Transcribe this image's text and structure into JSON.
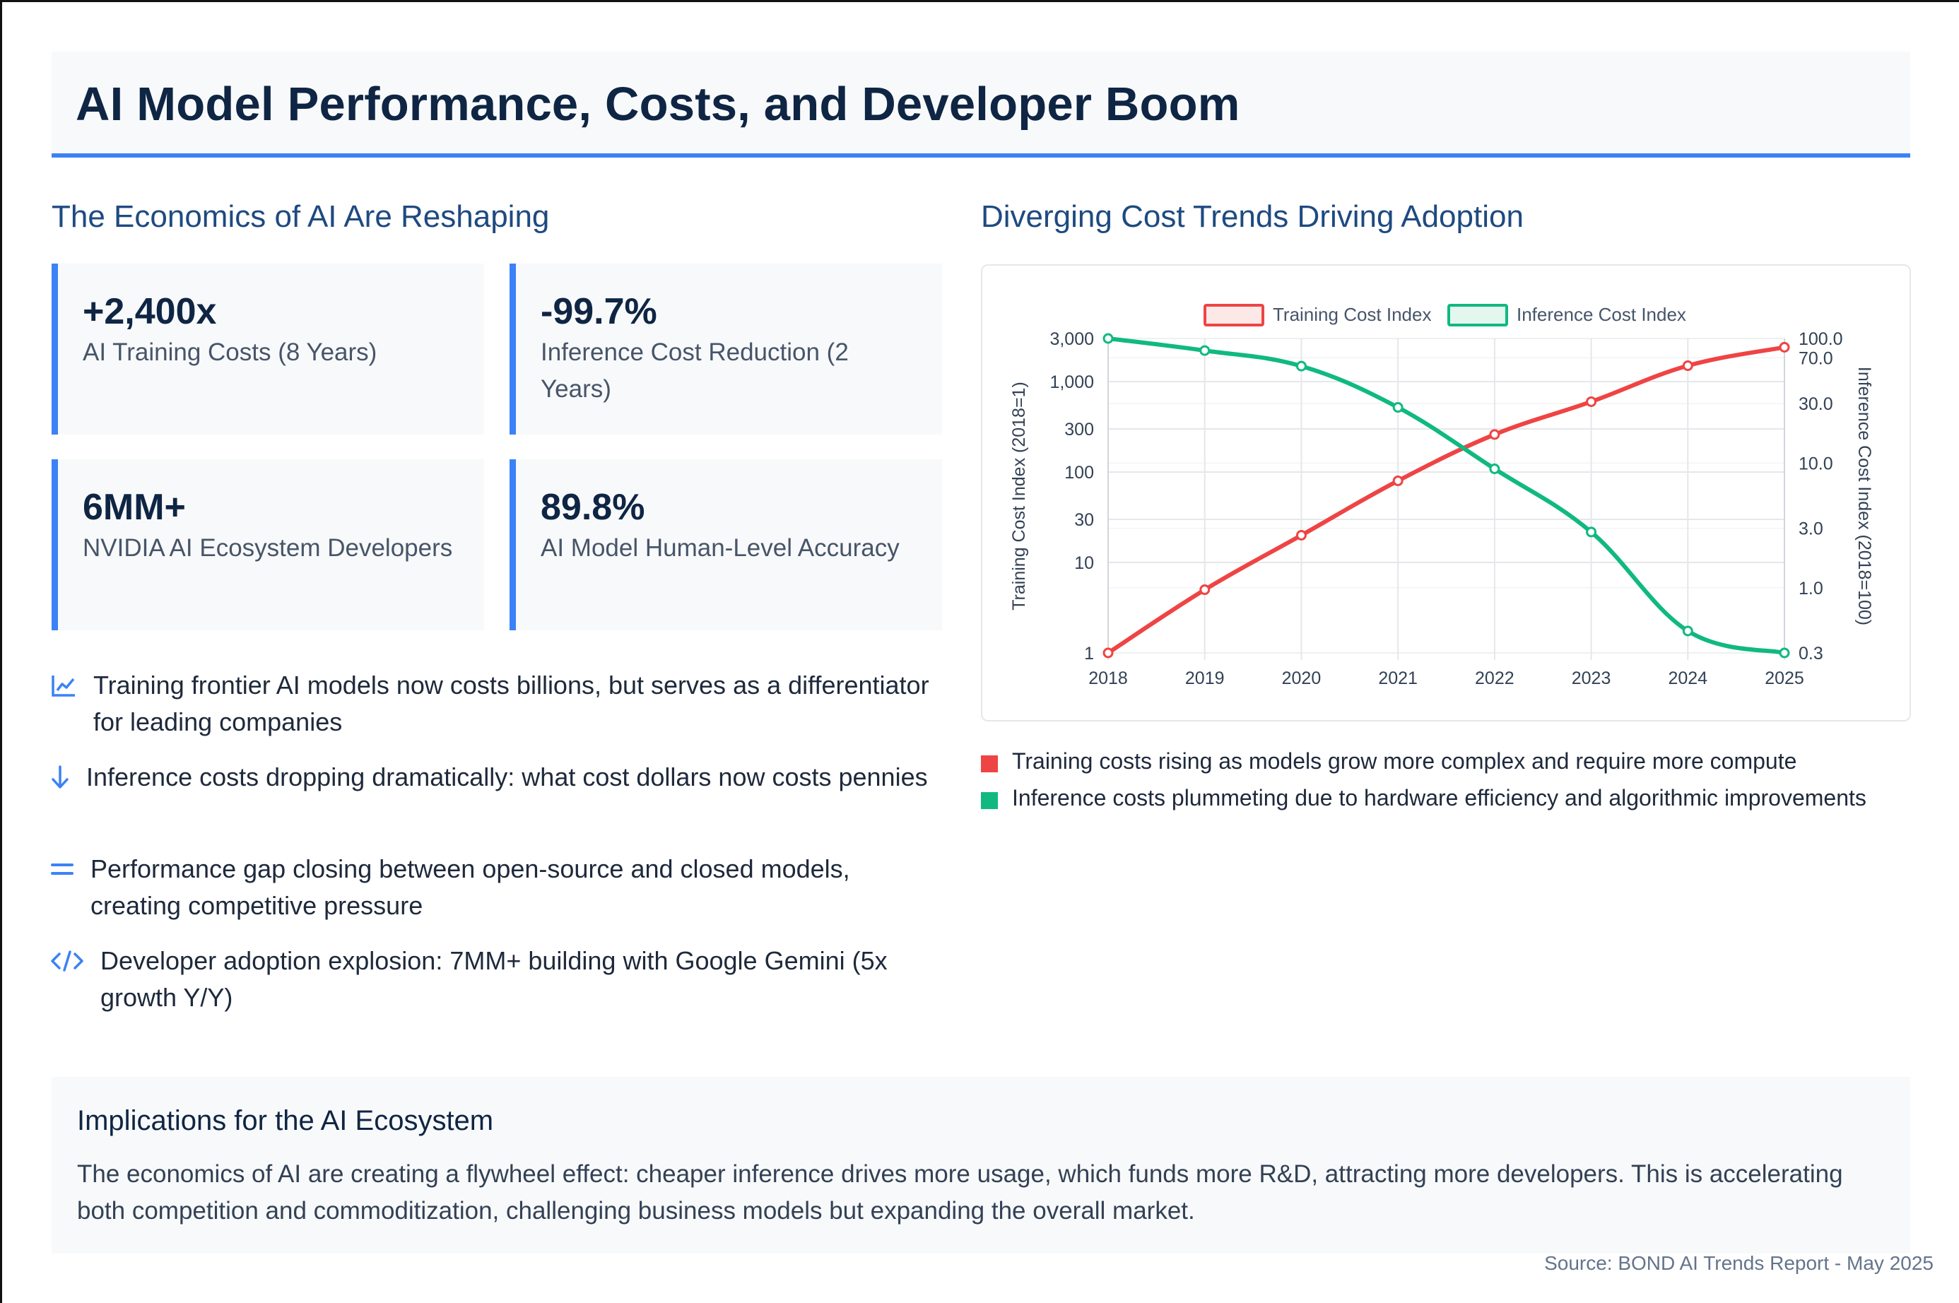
{
  "page": {
    "title": "AI Model Performance, Costs, and Developer Boom",
    "left_section_title": "The Economics of AI Are Reshaping",
    "right_section_title": "Diverging Cost Trends Driving Adoption"
  },
  "stats": [
    {
      "value": "+2,400x",
      "label": "AI Training Costs (8 Years)"
    },
    {
      "value": "-99.7%",
      "label": "Inference Cost Reduction (2 Years)"
    },
    {
      "value": "6MM+",
      "label": "NVIDIA AI Ecosystem Developers"
    },
    {
      "value": "89.8%",
      "label": "AI Model Human-Level Accuracy"
    }
  ],
  "bullets": [
    {
      "icon": "chart-line-icon",
      "text": "Training frontier AI models now costs billions, but serves as a differentiator for leading companies"
    },
    {
      "icon": "arrow-down-icon",
      "text": "Inference costs dropping dramatically: what cost dollars now costs pennies"
    },
    {
      "icon": "equals-icon",
      "text": "Performance gap closing between open-source and closed models, creating competitive pressure"
    },
    {
      "icon": "code-icon",
      "text": "Developer adoption explosion: 7MM+ building with Google Gemini (5x growth Y/Y)"
    }
  ],
  "chart_notes": [
    {
      "color": "#ef4444",
      "text": "Training costs rising as models grow more complex and require more compute"
    },
    {
      "color": "#10b981",
      "text": "Inference costs plummeting due to hardware efficiency and algorithmic improvements"
    }
  ],
  "implications": {
    "title": "Implications for the AI Ecosystem",
    "text": "The economics of AI are creating a flywheel effect: cheaper inference drives more usage, which funds more R&D, attracting more developers. This is accelerating both competition and commoditization, challenging business models but expanding the overall market."
  },
  "source": "Source: BOND AI Trends Report - May 2025",
  "colors": {
    "accent": "#3b82f6",
    "navy": "#0f2544",
    "training": "#ef4444",
    "inference": "#10b981"
  },
  "chart_data": {
    "type": "line",
    "x": [
      "2018",
      "2019",
      "2020",
      "2021",
      "2022",
      "2023",
      "2024",
      "2025"
    ],
    "series": [
      {
        "name": "Training Cost Index",
        "axis": "left",
        "color": "#ef4444",
        "values": [
          1,
          5,
          20,
          80,
          260,
          600,
          1500,
          2400
        ]
      },
      {
        "name": "Inference Cost Index",
        "axis": "right",
        "color": "#10b981",
        "values": [
          100,
          80,
          60,
          28,
          9,
          2.8,
          0.45,
          0.3
        ]
      }
    ],
    "y_left": {
      "label": "Training Cost Index (2018=1)",
      "scale": "log",
      "ticks": [
        1,
        10,
        30,
        100,
        300,
        1000,
        3000
      ],
      "tick_labels": [
        "1",
        "10",
        "30",
        "100",
        "300",
        "1,000",
        "3,000"
      ],
      "range": [
        1,
        3000
      ]
    },
    "y_right": {
      "label": "Inference Cost Index (2018=100)",
      "scale": "log",
      "ticks": [
        0.3,
        1,
        3,
        10,
        30,
        70,
        100
      ],
      "tick_labels": [
        "0.3",
        "1.0",
        "3.0",
        "10.0",
        "30.0",
        "70.0",
        "100.0"
      ],
      "range": [
        0.3,
        100
      ]
    },
    "grid": true,
    "legend_position": "top"
  }
}
